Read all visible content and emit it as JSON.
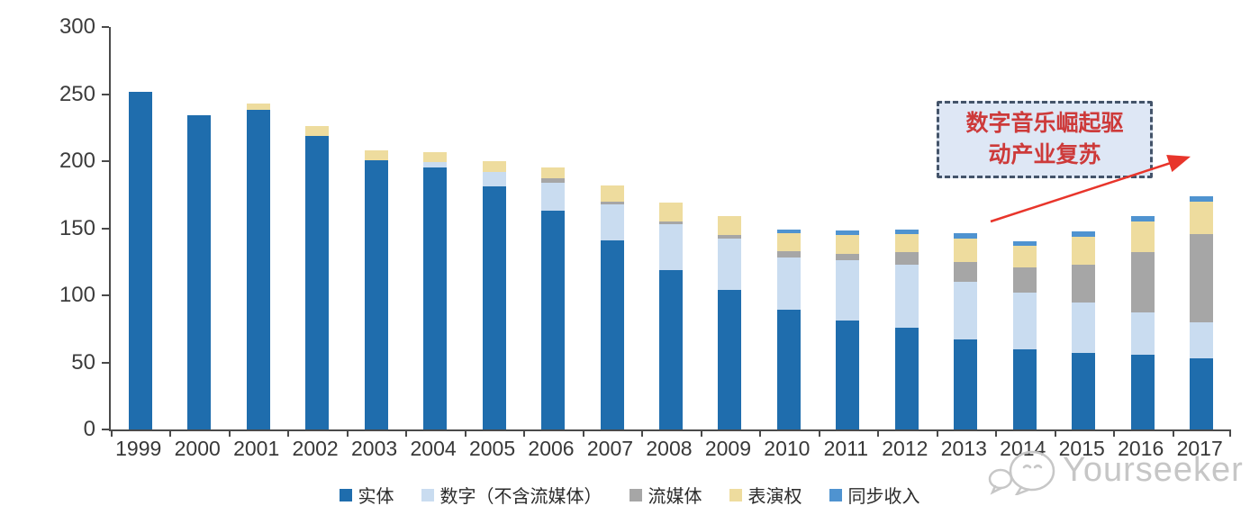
{
  "chart_data": {
    "type": "bar",
    "stacked": true,
    "categories": [
      "1999",
      "2000",
      "2001",
      "2002",
      "2003",
      "2004",
      "2005",
      "2006",
      "2007",
      "2008",
      "2009",
      "2010",
      "2011",
      "2012",
      "2013",
      "2014",
      "2015",
      "2016",
      "2017"
    ],
    "series": [
      {
        "name": "实体",
        "color": "#1f6dad",
        "values": [
          252,
          234,
          238,
          219,
          201,
          195,
          181,
          163,
          141,
          119,
          104,
          89,
          81,
          76,
          67,
          60,
          57,
          56,
          53
        ]
      },
      {
        "name": "数字（不含流媒体）",
        "color": "#c9dcf0",
        "values": [
          0,
          0,
          0,
          0,
          0,
          4,
          11,
          21,
          27,
          34,
          38,
          39,
          45,
          47,
          43,
          42,
          38,
          31,
          27
        ]
      },
      {
        "name": "流媒体",
        "color": "#a6a6a6",
        "values": [
          0,
          0,
          0,
          0,
          0,
          0,
          0,
          3,
          2,
          2,
          3,
          5,
          5,
          9,
          15,
          19,
          28,
          45,
          66
        ]
      },
      {
        "name": "表演权",
        "color": "#eedc9e",
        "values": [
          0,
          0,
          5,
          7,
          7,
          8,
          8,
          8,
          12,
          14,
          14,
          13,
          14,
          14,
          17,
          16,
          21,
          23,
          24
        ]
      },
      {
        "name": "同步收入",
        "color": "#4f93d0",
        "values": [
          0,
          0,
          0,
          0,
          0,
          0,
          0,
          0,
          0,
          0,
          0,
          3,
          3,
          3,
          4,
          3,
          4,
          4,
          4
        ]
      }
    ],
    "ylim": [
      0,
      300
    ],
    "ytick_step": 50,
    "ytick_labels": [
      "0",
      "50",
      "100",
      "150",
      "200",
      "250",
      "300"
    ],
    "grid": false,
    "legend_position": "bottom",
    "axis_color": "#4a4a4a"
  },
  "annotation": {
    "text_line1": "数字音乐崛起驱",
    "text_line2": "动产业复苏",
    "text_color": "#cd3a3a",
    "box_fill": "#dee7f5",
    "box_border": "#44546a",
    "arrow_color": "#e8352b"
  },
  "watermark": {
    "text": "Yourseeker",
    "color": "#c6c6c6"
  }
}
